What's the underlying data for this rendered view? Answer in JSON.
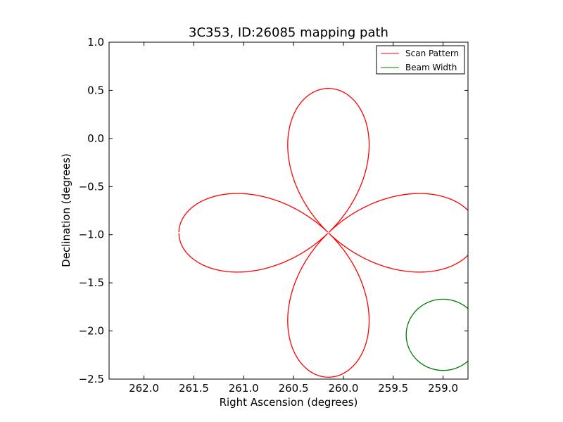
{
  "chart_data": {
    "type": "line",
    "title": "3C353, ID:26085 mapping path",
    "xlabel": "Right Ascension (degrees)",
    "ylabel": "Declination (degrees)",
    "xlim": [
      262.35,
      258.75
    ],
    "ylim": [
      -2.5,
      1.0
    ],
    "x_ticks": [
      262.0,
      261.5,
      261.0,
      260.5,
      260.0,
      259.5,
      259.0
    ],
    "x_tick_labels": [
      "262.0",
      "261.5",
      "261.0",
      "260.5",
      "260.0",
      "259.5",
      "259.0"
    ],
    "y_ticks": [
      1.0,
      0.5,
      0.0,
      -0.5,
      -1.0,
      -1.5,
      -2.0,
      -2.5
    ],
    "y_tick_labels": [
      "1.0",
      "0.5",
      "0.0",
      "−0.5",
      "−1.0",
      "−1.5",
      "−2.0",
      "−2.5"
    ],
    "grid": false,
    "legend_position": "top-right",
    "series": [
      {
        "name": "Scan Pattern",
        "color": "#ff0000",
        "shape": "four-petal rose curve",
        "center": [
          260.15,
          -0.98
        ],
        "petal_reach_ra": 1.5,
        "petal_reach_dec": 1.5,
        "ra_start": 261.61,
        "ra_end": 261.62
      },
      {
        "name": "Beam Width",
        "color": "#008000",
        "shape": "circle",
        "center": [
          259.0,
          -2.04
        ],
        "radius_deg": 0.37
      }
    ]
  }
}
